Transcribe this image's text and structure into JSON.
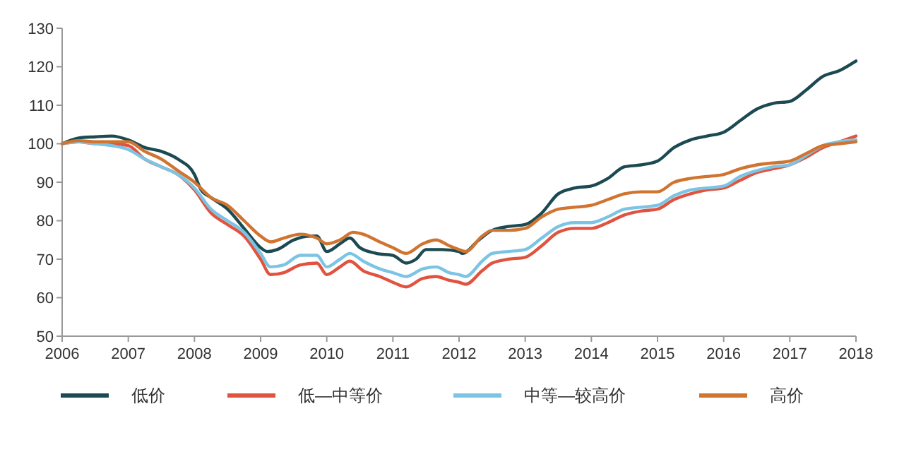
{
  "chart_data": {
    "type": "line",
    "xlim": [
      2006,
      2018
    ],
    "xticks": [
      2006,
      2007,
      2008,
      2009,
      2010,
      2011,
      2012,
      2013,
      2014,
      2015,
      2016,
      2017,
      2018
    ],
    "ylim": [
      50,
      130
    ],
    "yticks": [
      50,
      60,
      70,
      80,
      90,
      100,
      110,
      120,
      130
    ],
    "grid": false,
    "legend": "bottom",
    "marker": "none",
    "line_style": "solid",
    "series": [
      {
        "name": "低价",
        "color": "#1c4a52",
        "x": [
          2006,
          2006.25,
          2006.5,
          2006.75,
          2007,
          2007.25,
          2007.5,
          2007.75,
          2008,
          2008.1,
          2008.25,
          2008.5,
          2008.75,
          2009,
          2009.1,
          2009.25,
          2009.5,
          2009.75,
          2009.85,
          2010,
          2010.2,
          2010.35,
          2010.5,
          2010.75,
          2011,
          2011.2,
          2011.35,
          2011.5,
          2011.75,
          2012,
          2012.05,
          2012.3,
          2012.5,
          2012.75,
          2013,
          2013.25,
          2013.5,
          2013.75,
          2014,
          2014.25,
          2014.5,
          2014.75,
          2015,
          2015.25,
          2015.5,
          2015.75,
          2016,
          2016.25,
          2016.5,
          2016.75,
          2017,
          2017.25,
          2017.5,
          2017.75,
          2018
        ],
        "values": [
          100,
          101.5,
          101.8,
          102,
          101,
          99,
          98,
          96,
          92,
          88,
          86,
          83,
          78,
          73,
          72,
          72.5,
          75,
          76,
          76,
          72,
          74,
          75.5,
          73,
          71.5,
          71,
          69,
          70,
          72.5,
          72.5,
          72,
          71.5,
          75,
          77.5,
          78.5,
          79,
          82,
          87,
          88.5,
          89,
          91,
          94,
          94.5,
          95.5,
          99,
          101,
          102,
          103,
          106,
          109,
          110.5,
          111,
          114,
          117.5,
          119,
          121.5
        ]
      },
      {
        "name": "低—中等价",
        "color": "#e0533f",
        "x": [
          2006,
          2006.25,
          2006.5,
          2006.75,
          2007,
          2007.25,
          2007.5,
          2007.75,
          2008,
          2008.25,
          2008.5,
          2008.75,
          2009,
          2009.15,
          2009.35,
          2009.6,
          2009.85,
          2010,
          2010.2,
          2010.35,
          2010.55,
          2010.8,
          2011,
          2011.2,
          2011.45,
          2011.65,
          2011.85,
          2012,
          2012.1,
          2012.35,
          2012.5,
          2012.75,
          2013,
          2013.25,
          2013.5,
          2013.75,
          2014,
          2014.25,
          2014.5,
          2014.75,
          2015,
          2015.25,
          2015.5,
          2015.75,
          2016,
          2016.25,
          2016.5,
          2016.75,
          2017,
          2017.25,
          2017.5,
          2017.75,
          2018
        ],
        "values": [
          100,
          100.5,
          100,
          100,
          99.5,
          96,
          94,
          92,
          88,
          82,
          79,
          76,
          70,
          66,
          66.5,
          68.5,
          69,
          66,
          68,
          69.5,
          67,
          65.5,
          64,
          62.8,
          65,
          65.5,
          64.5,
          64,
          63.5,
          67,
          69,
          70,
          70.5,
          73.5,
          77,
          78,
          78,
          79.5,
          81.5,
          82.5,
          83,
          85.5,
          87,
          88,
          88.5,
          90.5,
          92.5,
          93.5,
          94.5,
          96.5,
          99,
          100.5,
          102
        ]
      },
      {
        "name": "中等—较高价",
        "color": "#7cc4e4",
        "x": [
          2006,
          2006.25,
          2006.5,
          2006.75,
          2007,
          2007.25,
          2007.5,
          2007.75,
          2008,
          2008.25,
          2008.5,
          2008.75,
          2009,
          2009.15,
          2009.35,
          2009.6,
          2009.85,
          2010,
          2010.2,
          2010.35,
          2010.55,
          2010.8,
          2011,
          2011.2,
          2011.45,
          2011.65,
          2011.85,
          2012,
          2012.1,
          2012.35,
          2012.5,
          2012.75,
          2013,
          2013.25,
          2013.5,
          2013.75,
          2014,
          2014.25,
          2014.5,
          2014.75,
          2015,
          2015.25,
          2015.5,
          2015.75,
          2016,
          2016.25,
          2016.5,
          2016.75,
          2017,
          2017.25,
          2017.5,
          2017.75,
          2018
        ],
        "values": [
          100,
          100.5,
          100,
          99.5,
          98.5,
          96,
          94,
          92,
          88.5,
          83,
          80,
          77,
          71.5,
          68,
          68.5,
          71,
          71,
          68,
          70,
          71.5,
          69.5,
          67.5,
          66.5,
          65.5,
          67.5,
          68,
          66.5,
          66,
          65.5,
          69.5,
          71.5,
          72,
          72.5,
          75.5,
          78.5,
          79.5,
          79.5,
          81,
          83,
          83.5,
          84,
          86.5,
          88,
          88.5,
          89,
          91.5,
          93,
          94,
          94.5,
          97,
          99.5,
          100.5,
          101
        ]
      },
      {
        "name": "高价",
        "color": "#d07430",
        "x": [
          2006,
          2006.25,
          2006.5,
          2006.75,
          2007,
          2007.25,
          2007.5,
          2007.75,
          2008,
          2008.25,
          2008.5,
          2008.75,
          2009,
          2009.15,
          2009.35,
          2009.6,
          2009.85,
          2010,
          2010.2,
          2010.4,
          2010.55,
          2010.8,
          2011,
          2011.2,
          2011.45,
          2011.65,
          2011.85,
          2012,
          2012.1,
          2012.35,
          2012.5,
          2012.75,
          2013,
          2013.25,
          2013.5,
          2013.75,
          2014,
          2014.25,
          2014.5,
          2014.75,
          2015,
          2015.25,
          2015.5,
          2015.75,
          2016,
          2016.25,
          2016.5,
          2016.75,
          2017,
          2017.25,
          2017.5,
          2017.75,
          2018
        ],
        "values": [
          100,
          100.8,
          100.5,
          100.5,
          100.5,
          98,
          96,
          93,
          90,
          86,
          84,
          80,
          76,
          74.5,
          75.5,
          76.5,
          75.5,
          74,
          75,
          77,
          76.5,
          74.5,
          73,
          71.5,
          74,
          75,
          73.5,
          72.5,
          72,
          76,
          77.5,
          77.5,
          78,
          81,
          83,
          83.5,
          84,
          85.5,
          87,
          87.5,
          87.5,
          90,
          91,
          91.5,
          92,
          93.5,
          94.5,
          95,
          95.5,
          97.5,
          99.5,
          100,
          100.5
        ]
      }
    ]
  }
}
